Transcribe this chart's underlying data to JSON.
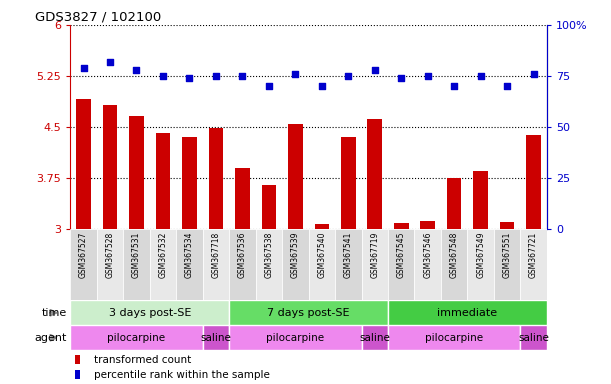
{
  "title": "GDS3827 / 102100",
  "samples": [
    "GSM367527",
    "GSM367528",
    "GSM367531",
    "GSM367532",
    "GSM367534",
    "GSM367718",
    "GSM367536",
    "GSM367538",
    "GSM367539",
    "GSM367540",
    "GSM367541",
    "GSM367719",
    "GSM367545",
    "GSM367546",
    "GSM367548",
    "GSM367549",
    "GSM367551",
    "GSM367721"
  ],
  "transformed_count": [
    4.92,
    4.82,
    4.67,
    4.42,
    4.35,
    4.48,
    3.9,
    3.65,
    4.55,
    3.07,
    4.35,
    4.62,
    3.09,
    3.12,
    3.75,
    3.85,
    3.1,
    4.38
  ],
  "percentile_rank": [
    79,
    82,
    78,
    75,
    74,
    75,
    75,
    70,
    76,
    70,
    75,
    78,
    74,
    75,
    70,
    75,
    70,
    76
  ],
  "ylim_left": [
    3.0,
    6.0
  ],
  "ylim_right": [
    0,
    100
  ],
  "yticks_left": [
    3.0,
    3.75,
    4.5,
    5.25,
    6.0
  ],
  "yticks_right": [
    0,
    25,
    50,
    75,
    100
  ],
  "ytick_labels_left": [
    "3",
    "3.75",
    "4.5",
    "5.25",
    "6"
  ],
  "ytick_labels_right": [
    "0",
    "25",
    "50",
    "75",
    "100%"
  ],
  "bar_color": "#cc0000",
  "dot_color": "#0000cc",
  "time_groups": [
    {
      "label": "3 days post-SE",
      "start": 0,
      "end": 5,
      "color": "#cceecc"
    },
    {
      "label": "7 days post-SE",
      "start": 6,
      "end": 11,
      "color": "#66dd66"
    },
    {
      "label": "immediate",
      "start": 12,
      "end": 17,
      "color": "#44cc44"
    }
  ],
  "agent_groups": [
    {
      "label": "pilocarpine",
      "start": 0,
      "end": 4,
      "color": "#ee88ee"
    },
    {
      "label": "saline",
      "start": 5,
      "end": 5,
      "color": "#cc55cc"
    },
    {
      "label": "pilocarpine",
      "start": 6,
      "end": 10,
      "color": "#ee88ee"
    },
    {
      "label": "saline",
      "start": 11,
      "end": 11,
      "color": "#cc55cc"
    },
    {
      "label": "pilocarpine",
      "start": 12,
      "end": 16,
      "color": "#ee88ee"
    },
    {
      "label": "saline",
      "start": 17,
      "end": 17,
      "color": "#cc55cc"
    }
  ],
  "time_label": "time",
  "agent_label": "agent",
  "legend_red_label": "transformed count",
  "legend_blue_label": "percentile rank within the sample"
}
